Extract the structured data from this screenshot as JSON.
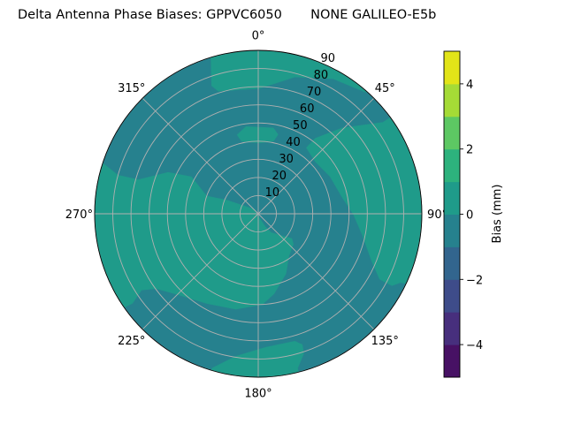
{
  "chart_data": {
    "type": "contour",
    "projection": "polar",
    "title": "Delta Antenna Phase Biases: GPPVC6050       NONE GALILEO-E5b",
    "theta_zero": "north",
    "theta_direction": "clockwise",
    "theta_ticks": [
      0,
      45,
      90,
      135,
      180,
      225,
      270,
      315
    ],
    "theta_tick_labels": [
      "0°",
      "45°",
      "90°",
      "135°",
      "180°",
      "225°",
      "270°",
      "315°"
    ],
    "r_ticks": [
      10,
      20,
      30,
      40,
      50,
      60,
      70,
      80,
      90
    ],
    "r_tick_labels": [
      "10",
      "20",
      "30",
      "40",
      "50",
      "60",
      "70",
      "80",
      "90"
    ],
    "rlim": [
      0,
      90
    ],
    "grid": true,
    "background_level": [
      -1,
      0
    ],
    "regions": [
      {
        "level": [
          0,
          1
        ],
        "points": [
          [
            343,
            100
          ],
          [
            343,
            89
          ],
          [
            340,
            75
          ],
          [
            342,
            71
          ],
          [
            0.5,
            69
          ],
          [
            15,
            78
          ],
          [
            29,
            85
          ],
          [
            41,
            89
          ],
          [
            45,
            93
          ],
          [
            45,
            100
          ],
          [
            20,
            100
          ],
          [
            0,
            100
          ]
        ]
      },
      {
        "level": [
          0,
          1
        ],
        "points": [
          [
            345,
            45
          ],
          [
            352,
            48.5
          ],
          [
            10,
            48
          ],
          [
            14,
            45
          ],
          [
            12,
            41
          ],
          [
            1,
            39
          ],
          [
            347,
            41
          ]
        ]
      },
      {
        "level": [
          0,
          1
        ],
        "points": [
          [
            54,
            100
          ],
          [
            54,
            93
          ],
          [
            53.7,
            85
          ],
          [
            44.3,
            66
          ],
          [
            37,
            52
          ],
          [
            36,
            45
          ],
          [
            47.8,
            42.5
          ],
          [
            62.7,
            44.5
          ],
          [
            78.8,
            47
          ],
          [
            90.7,
            52.5
          ],
          [
            101.8,
            58.6
          ],
          [
            113,
            68
          ],
          [
            118.4,
            76
          ],
          [
            118.3,
            83.5
          ],
          [
            115.8,
            87
          ],
          [
            114,
            100
          ],
          [
            100,
            100
          ],
          [
            75,
            100
          ]
        ]
      },
      {
        "level": [
          0,
          1
        ],
        "points": [
          [
            289,
            100
          ],
          [
            288,
            89.7
          ],
          [
            285.4,
            80
          ],
          [
            285.9,
            68.5
          ],
          [
            294.7,
            54.6
          ],
          [
            299,
            42
          ],
          [
            289,
            30
          ],
          [
            293.5,
            18.8
          ],
          [
            315,
            3.7
          ],
          [
            151.4,
            8
          ],
          [
            145.5,
            12.6
          ],
          [
            126.4,
            23
          ],
          [
            131,
            25.6
          ],
          [
            144.2,
            28.8
          ],
          [
            155.3,
            36.4
          ],
          [
            168.9,
            45
          ],
          [
            177.4,
            50
          ],
          [
            193.2,
            54
          ],
          [
            210,
            57
          ],
          [
            225.2,
            63
          ],
          [
            233.7,
            69.6
          ],
          [
            236.8,
            76.7
          ],
          [
            234.5,
            85
          ],
          [
            236,
            100
          ],
          [
            260,
            100
          ]
        ]
      },
      {
        "level": [
          0,
          1
        ],
        "points": [
          [
            197,
            100
          ],
          [
            196.6,
            88.7
          ],
          [
            189,
            79.5
          ],
          [
            177,
            73.7
          ],
          [
            164,
            73
          ],
          [
            161.4,
            76
          ],
          [
            162,
            81
          ],
          [
            165.7,
            87.8
          ],
          [
            166,
            100
          ],
          [
            180,
            100
          ]
        ]
      }
    ],
    "colorbar": {
      "label": "Bias (mm)",
      "range": [
        -5,
        5
      ],
      "levels": [
        -5,
        -4,
        -3,
        -2,
        -1,
        0,
        1,
        2,
        3,
        4,
        5
      ],
      "ticks": [
        -4,
        -2,
        0,
        2,
        4
      ],
      "tick_labels": [
        "−4",
        "−2",
        "0",
        "2",
        "4"
      ],
      "colors": [
        "#471164",
        "#472f7d",
        "#3e4c8a",
        "#32658e",
        "#26818e",
        "#1f9b8a",
        "#2db27d",
        "#5dc863",
        "#a5db36",
        "#e2e418"
      ]
    },
    "grid_color": "#b0b0b0"
  }
}
